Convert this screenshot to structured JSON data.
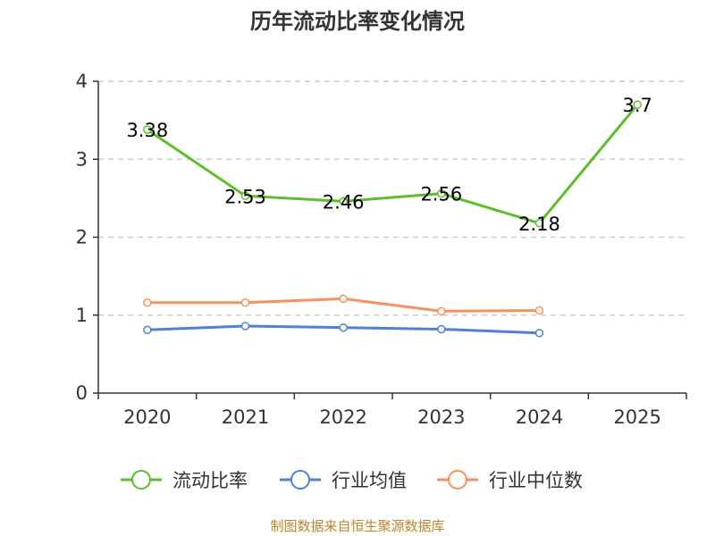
{
  "chart_data": {
    "type": "line",
    "title": "历年流动比率变化情况",
    "categories": [
      "2020",
      "2021",
      "2022",
      "2023",
      "2024",
      "2025"
    ],
    "y_ticks": [
      "0",
      "1",
      "2",
      "3",
      "4"
    ],
    "ylim": [
      0,
      4
    ],
    "grid": true,
    "legend_position": "bottom",
    "series": [
      {
        "name": "流动比率",
        "color": "#5cbf2a",
        "values": [
          3.38,
          2.53,
          2.46,
          2.56,
          2.18,
          3.7
        ],
        "labels": [
          "3.38",
          "2.53",
          "2.46",
          "2.56",
          "2.18",
          "3.7"
        ]
      },
      {
        "name": "行业均值",
        "color": "#4f7fd9",
        "values": [
          0.81,
          0.86,
          0.84,
          0.82,
          0.77,
          null
        ]
      },
      {
        "name": "行业中位数",
        "color": "#f7915d",
        "values": [
          1.16,
          1.16,
          1.21,
          1.05,
          1.06,
          null
        ]
      }
    ],
    "source": "制图数据来自恒生聚源数据库"
  }
}
